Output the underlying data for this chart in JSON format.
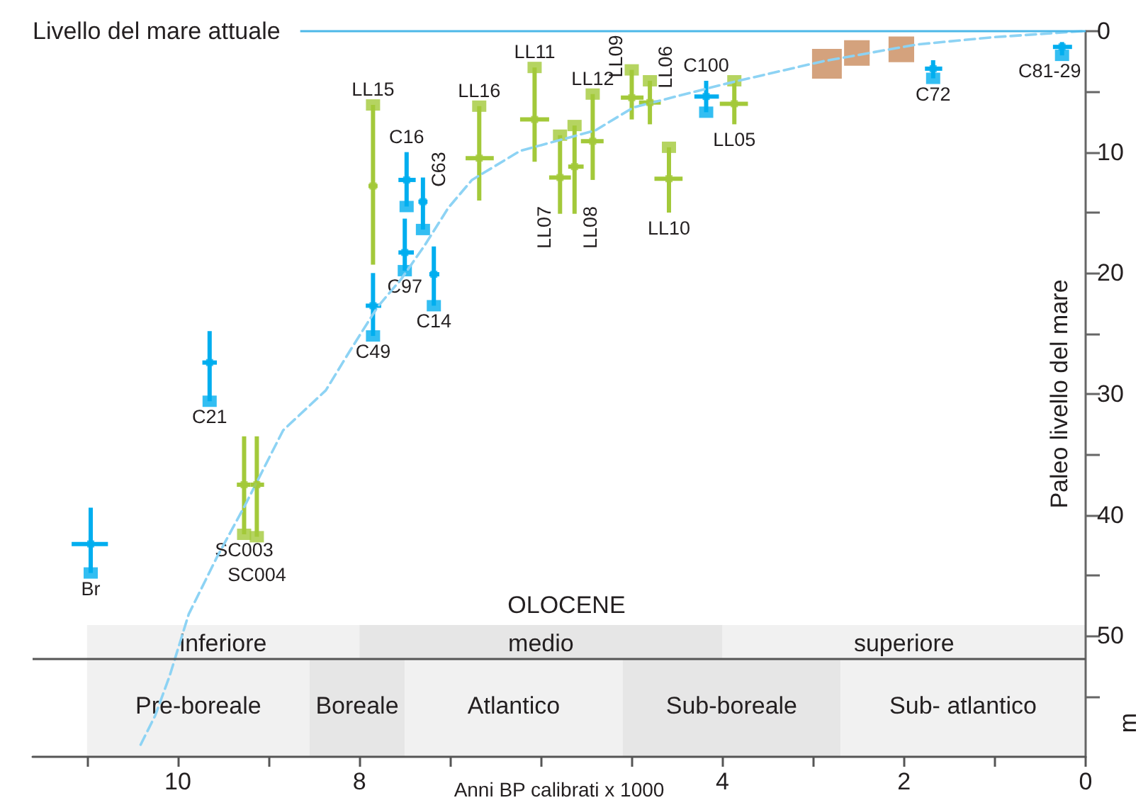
{
  "chart_data": {
    "type": "scatter",
    "xlabel": "Anni BP calibrati x 1000",
    "ylabel": "Paleo livello del mare",
    "xlim": [
      11.6,
      0
    ],
    "ylim": [
      60,
      0
    ],
    "xticks": [
      {
        "value": 11,
        "label": null
      },
      10,
      {
        "value": 9,
        "label": null
      },
      8,
      {
        "value": 7,
        "label": null
      },
      {
        "value": 6,
        "label": null
      },
      {
        "value": 5,
        "label": null
      },
      4,
      {
        "value": 3,
        "label": null
      },
      2,
      {
        "value": 1,
        "label": null
      },
      0
    ],
    "yticks": [
      0,
      {
        "value": 5,
        "label": null
      },
      10,
      {
        "value": 15,
        "label": null
      },
      20,
      {
        "value": 25,
        "label": null
      },
      30,
      {
        "value": 35,
        "label": null
      },
      40,
      {
        "value": 45,
        "label": null
      },
      50,
      {
        "value": 55,
        "label": null
      }
    ],
    "series": [
      {
        "type": "scatter",
        "marker": "square",
        "color": "#00aeef",
        "x": [
          10.96,
          9.65,
          7.85,
          7.48,
          7.5,
          7.3,
          7.18,
          4.18,
          1.68,
          0.26
        ],
        "values": [
          42.4,
          27.4,
          22.7,
          12.3,
          18.3,
          14.1,
          20.1,
          5.4,
          3.1,
          1.3
        ],
        "errors": [
          [
            39.4,
            44.8
          ],
          [
            24.8,
            30.6
          ],
          [
            20.0,
            25.2
          ],
          [
            10.0,
            14.5
          ],
          [
            15.5,
            19.8
          ],
          [
            12.1,
            16.4
          ],
          [
            17.8,
            22.7
          ],
          [
            4.1,
            6.7
          ],
          [
            2.4,
            3.9
          ],
          [
            0.9,
            2.0
          ]
        ],
        "xerrors": [
          [
            10.77,
            11.17
          ],
          [
            9.57,
            9.73
          ],
          [
            7.76,
            7.93
          ],
          [
            7.38,
            7.57
          ],
          [
            7.4,
            7.57
          ],
          [
            7.25,
            7.35
          ],
          [
            7.12,
            7.23
          ],
          [
            4.04,
            4.31
          ],
          [
            1.58,
            1.77
          ],
          [
            0.15,
            0.36
          ]
        ]
      },
      {
        "type": "scatter",
        "marker": "square",
        "color": "#a3c93a",
        "x": [
          7.85,
          6.68,
          6.07,
          5.79,
          5.63,
          5.43,
          5.0,
          4.8,
          4.59,
          3.87,
          9.27,
          9.13
        ],
        "values": [
          12.8,
          10.5,
          7.3,
          12.1,
          11.2,
          9.1,
          5.5,
          5.9,
          12.2,
          6.0,
          37.5,
          37.5
        ],
        "errors": [
          [
            6.1,
            19.3
          ],
          [
            6.2,
            14.0
          ],
          [
            3.0,
            10.8
          ],
          [
            8.6,
            15.1
          ],
          [
            7.8,
            15.1
          ],
          [
            5.2,
            12.3
          ],
          [
            3.2,
            7.3
          ],
          [
            4.1,
            7.7
          ],
          [
            9.6,
            15.0
          ],
          [
            4.1,
            7.7
          ],
          [
            33.5,
            41.6
          ],
          [
            33.5,
            41.8
          ]
        ],
        "xerrors": [
          [
            7.8,
            7.9
          ],
          [
            6.52,
            6.83
          ],
          [
            5.91,
            6.23
          ],
          [
            5.67,
            5.91
          ],
          [
            5.53,
            5.7
          ],
          [
            5.31,
            5.56
          ],
          [
            4.87,
            5.12
          ],
          [
            4.68,
            4.92
          ],
          [
            4.44,
            4.75
          ],
          [
            3.72,
            4.03
          ],
          [
            9.2,
            9.35
          ],
          [
            9.05,
            9.2
          ]
        ]
      },
      {
        "type": "scatter",
        "marker": "square",
        "color": "#00aeef",
        "x": [
          10.96,
          9.65,
          7.85,
          7.48,
          7.5,
          7.3,
          7.18,
          4.18,
          1.68,
          0.26
        ],
        "values": [
          44.8,
          30.6,
          25.2,
          14.5,
          19.8,
          16.4,
          22.7,
          6.7,
          3.9,
          2.0
        ]
      },
      {
        "type": "scatter",
        "marker": "square",
        "color": "#a3c93a",
        "x": [
          7.85,
          6.68,
          6.07,
          5.79,
          5.63,
          5.43,
          5.0,
          4.8,
          4.59,
          3.87,
          9.27,
          9.13
        ],
        "values": [
          6.1,
          6.2,
          3.0,
          8.6,
          7.8,
          5.2,
          3.2,
          4.1,
          9.6,
          4.1,
          41.6,
          41.8
        ]
      },
      {
        "type": "bubble",
        "marker": "square",
        "color": "#c98b5c",
        "x": [
          2.85,
          2.52,
          2.03
        ],
        "values": [
          2.7,
          1.8,
          1.5
        ],
        "sizes": [
          1,
          0.74,
          0.74
        ]
      },
      {
        "type": "line",
        "marker": "none",
        "line_style": "dashed",
        "color": "#8dd3f4",
        "x": [
          10.41,
          10.25,
          10.09,
          9.88,
          9.57,
          9.26,
          8.84,
          8.37,
          8.11,
          7.8,
          7.54,
          7.28,
          7.02,
          6.76,
          6.23,
          5.4,
          4.98,
          3.94,
          2.9,
          1.86,
          1.02,
          0.04
        ],
        "values": [
          59.0,
          56.6,
          53.3,
          48.2,
          43.5,
          39.2,
          33.0,
          29.7,
          26.5,
          22.8,
          20.5,
          17.7,
          14.6,
          12.3,
          9.9,
          8.2,
          6.3,
          4.3,
          2.5,
          1.1,
          0.5,
          0.0
        ]
      }
    ],
    "ref_lines": [
      {
        "axis": "y",
        "value": 0,
        "label": "Livello del mare attuale",
        "color": "#4db8e8"
      },
      {
        "axis": "y",
        "value": 51.9,
        "color": "#555555"
      }
    ],
    "bands": [
      {
        "axis": "x",
        "from": 11,
        "to": 8,
        "label": "inferiore",
        "color": "#f1f1f1"
      },
      {
        "axis": "x",
        "from": 8,
        "to": 4,
        "label": "medio",
        "color": "#e6e6e6"
      },
      {
        "axis": "x",
        "from": 4,
        "to": 0,
        "label": "superiore",
        "color": "#f1f1f1"
      },
      {
        "axis": "x",
        "from": 11,
        "to": 8.55,
        "label": "Pre-boreale",
        "color": "#f1f1f1"
      },
      {
        "axis": "x",
        "from": 8.55,
        "to": 7.5,
        "label": "Boreale",
        "color": "#e6e6e6"
      },
      {
        "axis": "x",
        "from": 7.5,
        "to": 5.1,
        "label": "Atlantico",
        "color": "#f1f1f1"
      },
      {
        "axis": "x",
        "from": 5.1,
        "to": 2.7,
        "label": "Sub-boreale",
        "color": "#e6e6e6"
      },
      {
        "axis": "x",
        "from": 2.7,
        "to": 0,
        "label": "Sub- atlantico",
        "color": "#f1f1f1"
      }
    ],
    "annotations": [
      "OLOCENE",
      "m",
      {
        "text": "LL15",
        "x": 7.85,
        "y": 6.1
      },
      {
        "text": "LL16",
        "x": 6.68,
        "y": 6.2
      },
      {
        "text": "C16",
        "x": 7.48,
        "y": 10.0
      },
      {
        "text": "C63",
        "x": 7.3,
        "y": 12.1
      },
      {
        "text": "C97",
        "x": 7.5,
        "y": 19.8
      },
      {
        "text": "C14",
        "x": 7.18,
        "y": 22.7
      },
      {
        "text": "C49",
        "x": 7.85,
        "y": 25.2
      },
      {
        "text": "C21",
        "x": 9.65,
        "y": 30.6
      },
      {
        "text": "Br",
        "x": 10.96,
        "y": 44.8
      },
      {
        "text": "SC003",
        "x": 9.27,
        "y": 41.6
      },
      {
        "text": "SC004",
        "x": 9.13,
        "y": 41.8
      },
      {
        "text": "LL11",
        "x": 6.07,
        "y": 3.0
      },
      {
        "text": "LL07",
        "x": 5.79,
        "y": 15.1
      },
      {
        "text": "LL08",
        "x": 5.63,
        "y": 15.1
      },
      {
        "text": "LL12",
        "x": 5.43,
        "y": 5.2
      },
      {
        "text": "LL09",
        "x": 5.0,
        "y": 3.2
      },
      {
        "text": "LL06",
        "x": 4.8,
        "y": 4.1
      },
      {
        "text": "C100",
        "x": 4.18,
        "y": 4.1
      },
      {
        "text": "LL10",
        "x": 4.59,
        "y": 15.0
      },
      {
        "text": "LL05",
        "x": 3.87,
        "y": 7.7
      },
      {
        "text": "C72",
        "x": 1.68,
        "y": 3.9
      },
      {
        "text": "C81-29",
        "x": 0.26,
        "y": 2.0
      }
    ]
  }
}
